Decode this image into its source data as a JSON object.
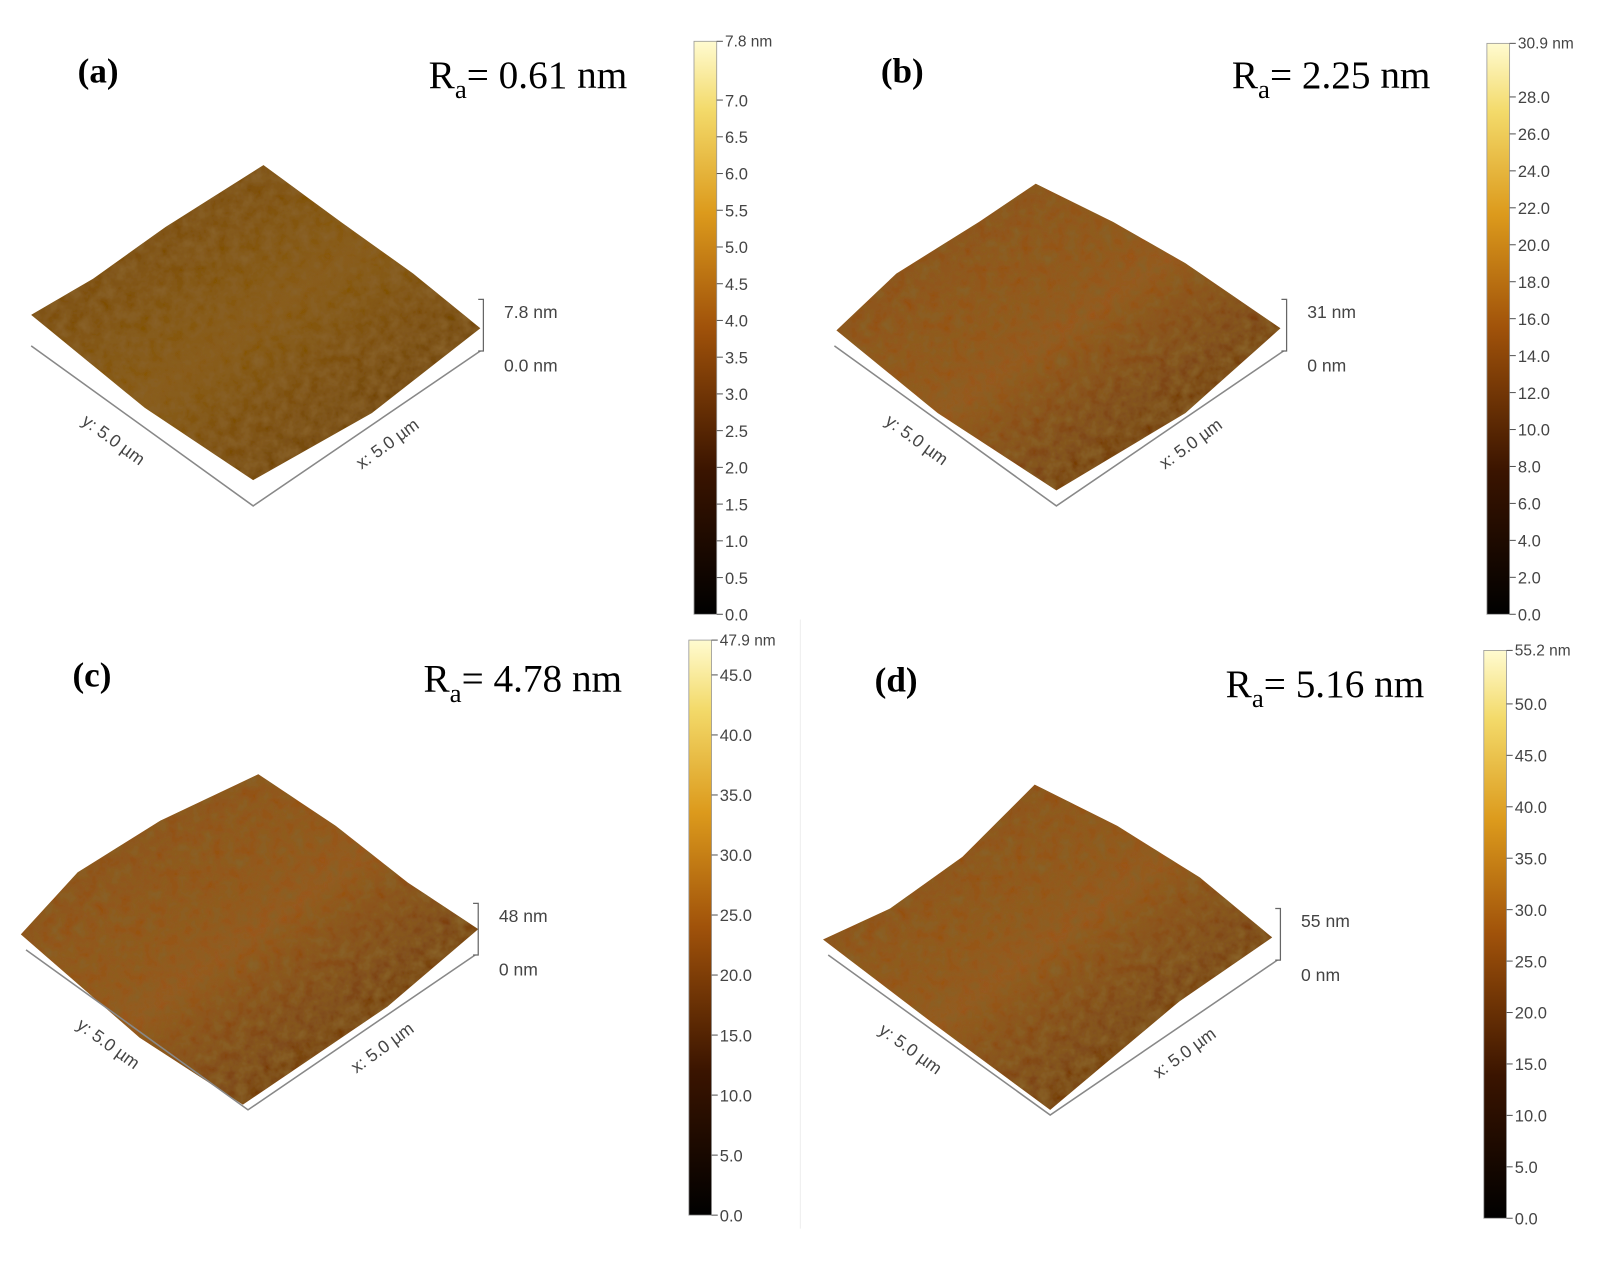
{
  "panels": [
    {
      "label": "(a)",
      "ra_symbol": "R",
      "ra_subscript": "a",
      "ra_value": "= 0.61 nm",
      "z_top": "7.8 nm",
      "z_bottom": "0.0 nm",
      "x_axis": "x: 5.0 µm",
      "y_axis": "y: 5.0 µm",
      "colorbar": {
        "max": 7.8,
        "max_label": "7.8 nm",
        "ticks": [
          {
            "value": 0,
            "label": "0.0"
          },
          {
            "value": 0.5,
            "label": "0.5"
          },
          {
            "value": 1,
            "label": "1.0"
          },
          {
            "value": 1.5,
            "label": "1.5"
          },
          {
            "value": 2,
            "label": "2.0"
          },
          {
            "value": 2.5,
            "label": "2.5"
          },
          {
            "value": 3,
            "label": "3.0"
          },
          {
            "value": 3.5,
            "label": "3.5"
          },
          {
            "value": 4,
            "label": "4.0"
          },
          {
            "value": 4.5,
            "label": "4.5"
          },
          {
            "value": 5,
            "label": "5.0"
          },
          {
            "value": 5.5,
            "label": "5.5"
          },
          {
            "value": 6,
            "label": "6.0"
          },
          {
            "value": 6.5,
            "label": "6.5"
          },
          {
            "value": 7,
            "label": "7.0"
          }
        ]
      }
    },
    {
      "label": "(b)",
      "ra_symbol": "R",
      "ra_subscript": "a",
      "ra_value": "= 2.25 nm",
      "z_top": "31 nm",
      "z_bottom": "0 nm",
      "x_axis": "x: 5.0 µm",
      "y_axis": "y: 5.0 µm",
      "colorbar": {
        "max": 30.9,
        "max_label": "30.9 nm",
        "ticks": [
          {
            "value": 0,
            "label": "0.0"
          },
          {
            "value": 2,
            "label": "2.0"
          },
          {
            "value": 4,
            "label": "4.0"
          },
          {
            "value": 6,
            "label": "6.0"
          },
          {
            "value": 8,
            "label": "8.0"
          },
          {
            "value": 10,
            "label": "10.0"
          },
          {
            "value": 12,
            "label": "12.0"
          },
          {
            "value": 14,
            "label": "14.0"
          },
          {
            "value": 16,
            "label": "16.0"
          },
          {
            "value": 18,
            "label": "18.0"
          },
          {
            "value": 20,
            "label": "20.0"
          },
          {
            "value": 22,
            "label": "22.0"
          },
          {
            "value": 24,
            "label": "24.0"
          },
          {
            "value": 26,
            "label": "26.0"
          },
          {
            "value": 28,
            "label": "28.0"
          }
        ]
      }
    },
    {
      "label": "(c)",
      "ra_symbol": "R",
      "ra_subscript": "a",
      "ra_value": "= 4.78 nm",
      "z_top": "48 nm",
      "z_bottom": "0 nm",
      "x_axis": "x: 5.0 µm",
      "y_axis": "y: 5.0 µm",
      "colorbar": {
        "max": 47.9,
        "max_label": "47.9 nm",
        "ticks": [
          {
            "value": 0,
            "label": "0.0"
          },
          {
            "value": 5,
            "label": "5.0"
          },
          {
            "value": 10,
            "label": "10.0"
          },
          {
            "value": 15,
            "label": "15.0"
          },
          {
            "value": 20,
            "label": "20.0"
          },
          {
            "value": 25,
            "label": "25.0"
          },
          {
            "value": 30,
            "label": "30.0"
          },
          {
            "value": 35,
            "label": "35.0"
          },
          {
            "value": 40,
            "label": "40.0"
          },
          {
            "value": 45,
            "label": "45.0"
          }
        ]
      }
    },
    {
      "label": "(d)",
      "ra_symbol": "R",
      "ra_subscript": "a",
      "ra_value": "= 5.16 nm",
      "z_top": "55 nm",
      "z_bottom": "0 nm",
      "x_axis": "x: 5.0 µm",
      "y_axis": "y: 5.0 µm",
      "colorbar": {
        "max": 55.2,
        "max_label": "55.2 nm",
        "ticks": [
          {
            "value": 0,
            "label": "0.0"
          },
          {
            "value": 5,
            "label": "5.0"
          },
          {
            "value": 10,
            "label": "10.0"
          },
          {
            "value": 15,
            "label": "15.0"
          },
          {
            "value": 20,
            "label": "20.0"
          },
          {
            "value": 25,
            "label": "25.0"
          },
          {
            "value": 30,
            "label": "30.0"
          },
          {
            "value": 35,
            "label": "35.0"
          },
          {
            "value": 40,
            "label": "40.0"
          },
          {
            "value": 45,
            "label": "45.0"
          },
          {
            "value": 50,
            "label": "50.0"
          }
        ]
      }
    }
  ]
}
